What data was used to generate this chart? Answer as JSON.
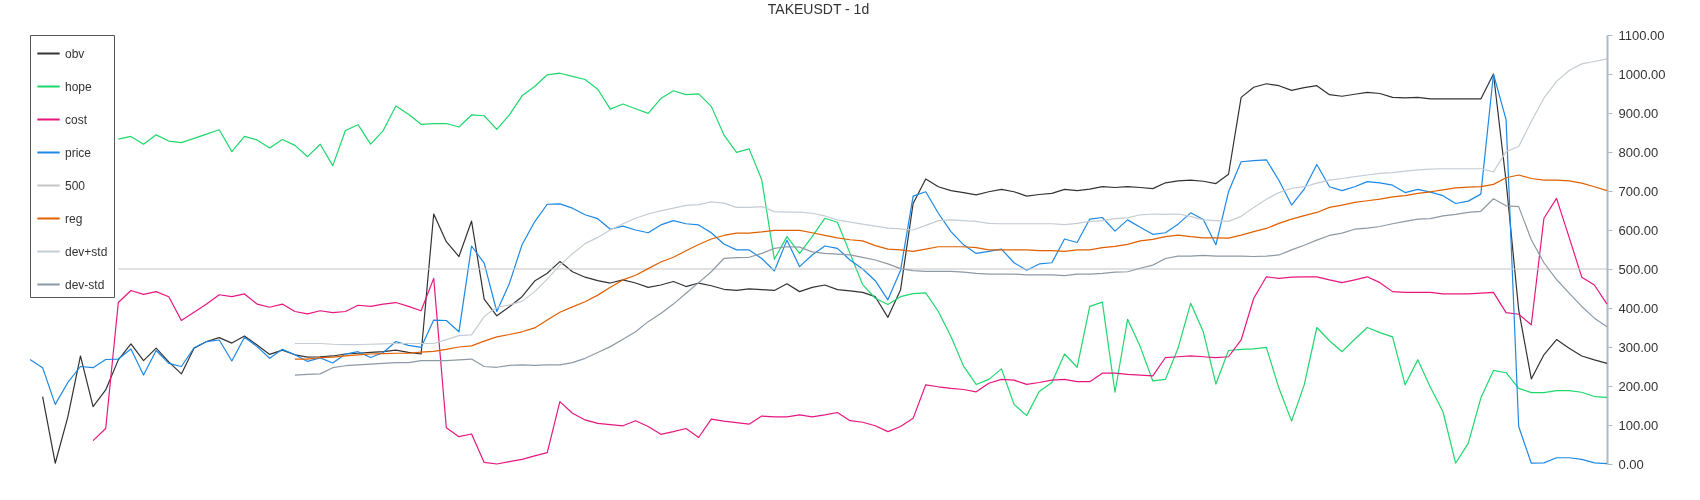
{
  "chart_data": {
    "type": "line",
    "title": "TAKEUSDT - 1d",
    "categories": [
      null,
      null,
      null,
      null,
      null,
      null,
      null,
      null,
      null,
      null,
      null,
      null,
      null,
      null,
      null,
      null,
      null,
      null,
      null,
      null,
      null,
      null,
      null,
      null,
      null,
      null,
      null,
      null,
      null,
      null,
      null,
      null,
      null,
      null,
      null,
      null,
      null,
      null,
      null,
      null,
      null,
      null,
      null,
      null,
      null,
      null,
      null,
      null,
      null,
      null,
      null,
      null,
      null,
      null,
      null,
      null,
      null,
      null,
      null,
      null,
      null,
      null,
      null,
      null,
      null,
      null,
      null,
      null,
      null,
      null,
      null,
      null,
      null,
      null,
      null,
      null,
      null,
      null,
      null,
      null,
      null,
      null,
      null,
      null,
      null,
      null,
      null,
      null,
      null,
      null,
      null,
      null,
      null,
      null,
      null,
      null,
      null,
      null,
      null,
      null,
      null,
      null,
      null,
      null,
      null,
      null,
      null,
      null,
      null,
      null,
      null,
      null,
      null,
      null,
      null,
      null,
      null,
      null,
      null,
      null,
      null,
      null,
      null,
      null,
      null,
      null
    ],
    "ylim": [
      0,
      1100
    ],
    "yticks": [
      {
        "value": 0,
        "label": "0.00"
      },
      {
        "value": 100,
        "label": "100.00"
      },
      {
        "value": 200,
        "label": "200.00"
      },
      {
        "value": 300,
        "label": "300.00"
      },
      {
        "value": 400,
        "label": "400.00"
      },
      {
        "value": 500,
        "label": "500.00"
      },
      {
        "value": 600,
        "label": "600.00"
      },
      {
        "value": 700,
        "label": "700.00"
      },
      {
        "value": 800,
        "label": "800.00"
      },
      {
        "value": 900,
        "label": "900.00"
      },
      {
        "value": 1000,
        "label": "1000.00"
      },
      {
        "value": 1100,
        "label": "1100.00"
      }
    ],
    "legend": "top left",
    "series": [
      {
        "name": "obv",
        "color": "#333333",
        "values": [
          null,
          173,
          2,
          121,
          277,
          147,
          190,
          267,
          308,
          265,
          297,
          262,
          231,
          297,
          314,
          324,
          310,
          328,
          305,
          281,
          292,
          280,
          274,
          275,
          277,
          282,
          284,
          286,
          288,
          292,
          286,
          282,
          641,
          570,
          532,
          623,
          423,
          380,
          403,
          429,
          469,
          489,
          519,
          493,
          479,
          470,
          464,
          472,
          464,
          453,
          459,
          468,
          455,
          464,
          457,
          448,
          445,
          449,
          447,
          445,
          462,
          442,
          453,
          459,
          447,
          444,
          440,
          429,
          376,
          446,
          668,
          731,
          711,
          701,
          696,
          690,
          698,
          704,
          698,
          687,
          691,
          694,
          704,
          701,
          705,
          711,
          709,
          711,
          709,
          706,
          721,
          726,
          728,
          725,
          719,
          743,
          940,
          966,
          975,
          970,
          958,
          965,
          970,
          947,
          943,
          948,
          953,
          950,
          940,
          939,
          940,
          936,
          936,
          936,
          936,
          936,
          1000,
          725,
          395,
          218,
          280,
          319,
          297,
          277,
          267,
          258
        ]
      },
      {
        "name": "hope",
        "color": "#1fd76c",
        "values": [
          null,
          null,
          null,
          null,
          null,
          null,
          null,
          833,
          840,
          820,
          844,
          828,
          824,
          835,
          846,
          857,
          801,
          840,
          831,
          810,
          832,
          817,
          788,
          820,
          765,
          855,
          870,
          820,
          855,
          918,
          897,
          871,
          873,
          873,
          864,
          895,
          893,
          858,
          895,
          944,
          968,
          998,
          1002,
          994,
          986,
          961,
          910,
          923,
          911,
          899,
          937,
          957,
          947,
          949,
          917,
          844,
          799,
          808,
          729,
          525,
          583,
          540,
          583,
          630,
          620,
          540,
          460,
          425,
          409,
          429,
          437,
          439,
          391,
          327,
          251,
          204,
          217,
          244,
          153,
          124,
          186,
          209,
          282,
          248,
          404,
          415,
          184,
          371,
          301,
          213,
          217,
          297,
          412,
          339,
          205,
          291,
          294,
          295,
          299,
          194,
          110,
          203,
          350,
          316,
          288,
          320,
          350,
          337,
          326,
          203,
          267,
          197,
          134,
          2,
          53,
          169,
          240,
          234,
          194,
          183,
          183,
          188,
          188,
          184,
          173,
          171
        ]
      },
      {
        "name": "cost",
        "color": "#e8177f",
        "values": [
          null,
          null,
          null,
          null,
          null,
          60,
          91,
          414,
          445,
          435,
          442,
          429,
          368,
          389,
          410,
          434,
          429,
          436,
          410,
          402,
          410,
          391,
          385,
          393,
          388,
          391,
          407,
          404,
          410,
          414,
          404,
          393,
          476,
          93,
          70,
          77,
          4,
          0,
          6,
          12,
          21,
          29,
          160,
          130,
          113,
          104,
          101,
          98,
          111,
          96,
          76,
          83,
          91,
          68,
          115,
          110,
          106,
          102,
          123,
          121,
          121,
          126,
          121,
          126,
          132,
          111,
          107,
          98,
          83,
          96,
          117,
          203,
          198,
          194,
          191,
          185,
          207,
          217,
          215,
          204,
          209,
          215,
          217,
          211,
          211,
          233,
          233,
          230,
          228,
          226,
          273,
          275,
          277,
          275,
          273,
          275,
          318,
          425,
          480,
          476,
          479,
          480,
          480,
          472,
          465,
          472,
          480,
          465,
          442,
          440,
          440,
          440,
          436,
          436,
          436,
          438,
          440,
          388,
          384,
          357,
          630,
          681,
          581,
          479,
          459,
          410
        ]
      },
      {
        "name": "price",
        "color": "#1e88e5",
        "values": [
          268,
          247,
          153,
          209,
          250,
          247,
          268,
          269,
          295,
          228,
          291,
          258,
          250,
          298,
          314,
          318,
          264,
          325,
          301,
          271,
          294,
          280,
          263,
          272,
          259,
          282,
          288,
          273,
          286,
          314,
          304,
          299,
          369,
          368,
          339,
          559,
          515,
          391,
          463,
          562,
          621,
          666,
          667,
          656,
          639,
          629,
          602,
          610,
          600,
          593,
          613,
          624,
          616,
          613,
          593,
          564,
          549,
          549,
          527,
          495,
          574,
          506,
          536,
          559,
          553,
          523,
          500,
          470,
          421,
          496,
          687,
          698,
          643,
          596,
          562,
          540,
          545,
          551,
          516,
          497,
          513,
          516,
          577,
          568,
          628,
          632,
          597,
          626,
          607,
          589,
          593,
          615,
          644,
          627,
          562,
          698,
          775,
          778,
          780,
          727,
          664,
          705,
          768,
          711,
          701,
          711,
          724,
          721,
          715,
          696,
          704,
          697,
          688,
          668,
          674,
          692,
          1000,
          883,
          96,
          2,
          3,
          16,
          16,
          12,
          3,
          1
        ]
      },
      {
        "name": "500",
        "color": "#c4c4c4",
        "values": [
          null,
          null,
          null,
          null,
          null,
          null,
          null,
          500,
          500,
          500,
          500,
          500,
          500,
          500,
          500,
          500,
          500,
          500,
          500,
          500,
          500,
          500,
          500,
          500,
          500,
          500,
          500,
          500,
          500,
          500,
          500,
          500,
          500,
          500,
          500,
          500,
          500,
          500,
          500,
          500,
          500,
          500,
          500,
          500,
          500,
          500,
          500,
          500,
          500,
          500,
          500,
          500,
          500,
          500,
          500,
          500,
          500,
          500,
          500,
          500,
          500,
          500,
          500,
          500,
          500,
          500,
          500,
          500,
          500,
          500,
          500,
          500,
          500,
          500,
          500,
          500,
          500,
          500,
          500,
          500,
          500,
          500,
          500,
          500,
          500,
          500,
          500,
          500,
          500,
          500,
          500,
          500,
          500,
          500,
          500,
          500,
          500,
          500,
          500,
          500,
          500,
          500,
          500,
          500,
          500,
          500,
          500,
          500,
          500,
          500,
          500,
          500,
          500,
          500,
          500,
          500,
          500,
          500,
          500,
          500,
          500,
          500,
          500,
          500,
          500,
          500
        ]
      },
      {
        "name": "reg",
        "color": "#e06000",
        "values": [
          null,
          null,
          null,
          null,
          null,
          null,
          null,
          null,
          null,
          null,
          null,
          null,
          null,
          null,
          null,
          null,
          null,
          null,
          null,
          null,
          null,
          269,
          269,
          273,
          274,
          277,
          280,
          282,
          283,
          284,
          284,
          287,
          289,
          294,
          300,
          303,
          315,
          326,
          332,
          339,
          349,
          369,
          389,
          403,
          416,
          433,
          453,
          472,
          484,
          501,
          518,
          530,
          547,
          563,
          577,
          586,
          592,
          592,
          595,
          599,
          599,
          599,
          593,
          586,
          580,
          575,
          572,
          560,
          551,
          549,
          545,
          551,
          557,
          557,
          557,
          555,
          549,
          549,
          549,
          549,
          547,
          547,
          545,
          549,
          549,
          555,
          558,
          563,
          572,
          576,
          583,
          587,
          583,
          580,
          580,
          579,
          587,
          596,
          604,
          617,
          628,
          637,
          645,
          658,
          664,
          671,
          675,
          679,
          685,
          688,
          694,
          698,
          703,
          708,
          710,
          711,
          717,
          734,
          741,
          732,
          728,
          728,
          726,
          720,
          711,
          701
        ]
      },
      {
        "name": "dev+std",
        "color": "#c5ccd3",
        "values": [
          null,
          null,
          null,
          null,
          null,
          null,
          null,
          null,
          null,
          null,
          null,
          null,
          null,
          null,
          null,
          null,
          null,
          null,
          null,
          null,
          null,
          309,
          309,
          309,
          307,
          306,
          306,
          307,
          308,
          309,
          309,
          309,
          309,
          319,
          329,
          331,
          378,
          402,
          408,
          417,
          442,
          474,
          510,
          539,
          565,
          581,
          600,
          616,
          630,
          641,
          649,
          656,
          663,
          665,
          672,
          669,
          658,
          658,
          660,
          647,
          646,
          646,
          643,
          636,
          626,
          620,
          615,
          610,
          605,
          603,
          600,
          612,
          624,
          626,
          624,
          622,
          617,
          616,
          616,
          616,
          616,
          616,
          614,
          617,
          622,
          624,
          629,
          631,
          639,
          641,
          640,
          641,
          635,
          626,
          624,
          622,
          635,
          658,
          679,
          696,
          707,
          711,
          720,
          728,
          732,
          737,
          741,
          745,
          747,
          751,
          754,
          756,
          757,
          757,
          757,
          757,
          749,
          801,
          814,
          878,
          938,
          981,
          1009,
          1026,
          1032,
          1039
        ]
      },
      {
        "name": "dev-std",
        "color": "#8d9aa5",
        "values": [
          null,
          null,
          null,
          null,
          null,
          null,
          null,
          null,
          null,
          null,
          null,
          null,
          null,
          null,
          null,
          null,
          null,
          null,
          null,
          null,
          null,
          228,
          230,
          231,
          247,
          252,
          254,
          256,
          258,
          260,
          260,
          265,
          265,
          265,
          267,
          269,
          250,
          248,
          253,
          254,
          253,
          254,
          254,
          260,
          271,
          286,
          301,
          320,
          339,
          365,
          386,
          410,
          438,
          465,
          493,
          527,
          529,
          530,
          540,
          553,
          557,
          556,
          544,
          540,
          538,
          536,
          530,
          523,
          513,
          501,
          496,
          494,
          494,
          494,
          492,
          489,
          487,
          487,
          487,
          485,
          485,
          485,
          483,
          487,
          487,
          489,
          492,
          493,
          502,
          510,
          527,
          533,
          533,
          535,
          533,
          533,
          533,
          532,
          533,
          536,
          549,
          561,
          574,
          586,
          592,
          602,
          605,
          609,
          616,
          622,
          628,
          629,
          636,
          640,
          645,
          648,
          680,
          662,
          660,
          575,
          516,
          473,
          438,
          404,
          374,
          352
        ]
      }
    ]
  }
}
